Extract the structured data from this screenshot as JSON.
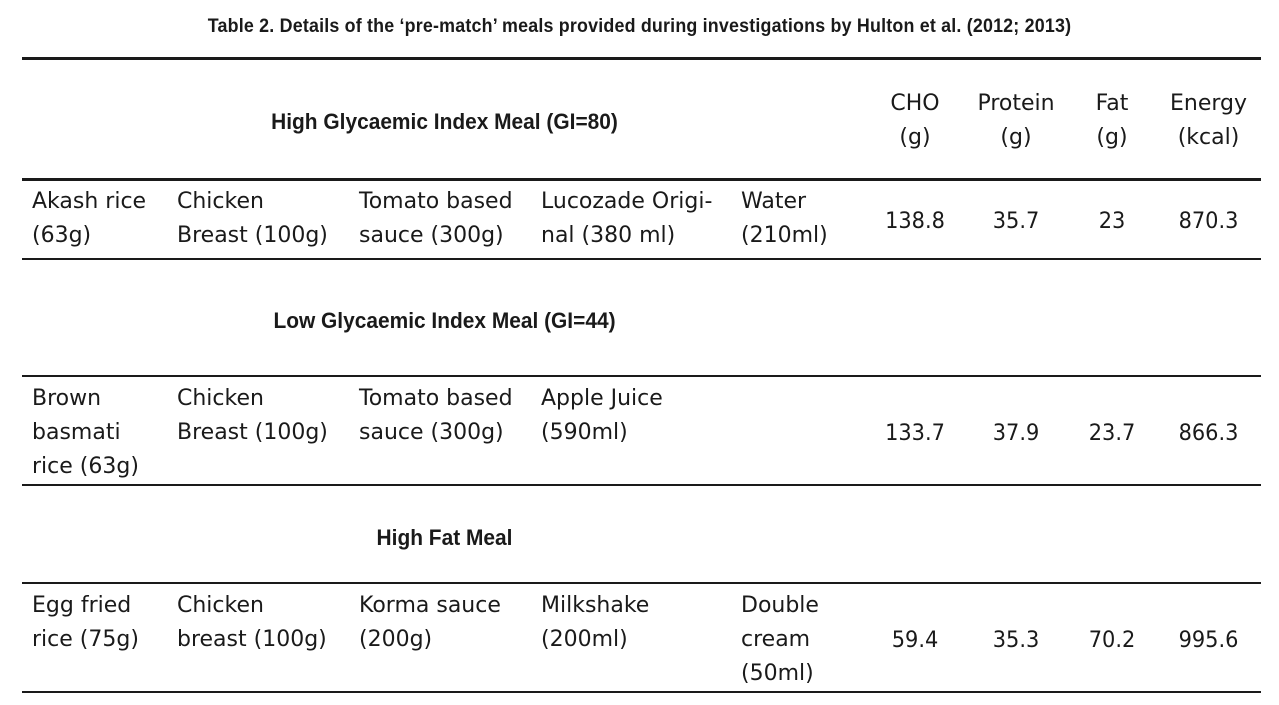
{
  "caption": "Table 2. Details of the ‘pre-match’ meals provided during investigations by Hulton et al. (2012; 2013)",
  "header": {
    "cho": [
      "CHO",
      "(g)"
    ],
    "protein": [
      "Protein",
      "(g)"
    ],
    "fat": [
      "Fat",
      "(g)"
    ],
    "energy": [
      "Energy",
      "(kcal)"
    ]
  },
  "sections": [
    {
      "title": "High Glycaemic Index Meal (GI=80)",
      "items": [
        [
          "Akash rice",
          "(63g)"
        ],
        [
          "Chicken",
          "Breast (100g)"
        ],
        [
          "Tomato based",
          "sauce (300g)"
        ],
        [
          "Lucozade Origi-",
          "nal (380 ml)"
        ],
        [
          "Water",
          "(210ml)"
        ]
      ],
      "cho": "138.8",
      "protein": "35.7",
      "fat": "23",
      "energy": "870.3"
    },
    {
      "title": "Low Glycaemic Index Meal (GI=44)",
      "items": [
        [
          "Brown",
          "basmati",
          "rice (63g)"
        ],
        [
          "Chicken",
          "Breast (100g)"
        ],
        [
          "Tomato based",
          "sauce (300g)"
        ],
        [
          "Apple Juice",
          "(590ml)"
        ],
        []
      ],
      "cho": "133.7",
      "protein": "37.9",
      "fat": "23.7",
      "energy": "866.3"
    },
    {
      "title": "High Fat Meal",
      "items": [
        [
          "Egg fried",
          "rice (75g)"
        ],
        [
          "Chicken",
          "breast (100g)"
        ],
        [
          "Korma sauce",
          "(200g)"
        ],
        [
          "Milkshake",
          "(200ml)"
        ],
        [
          "Double",
          "cream",
          "(50ml)"
        ]
      ],
      "cho": "59.4",
      "protein": "35.3",
      "fat": "70.2",
      "energy": "995.6"
    }
  ]
}
